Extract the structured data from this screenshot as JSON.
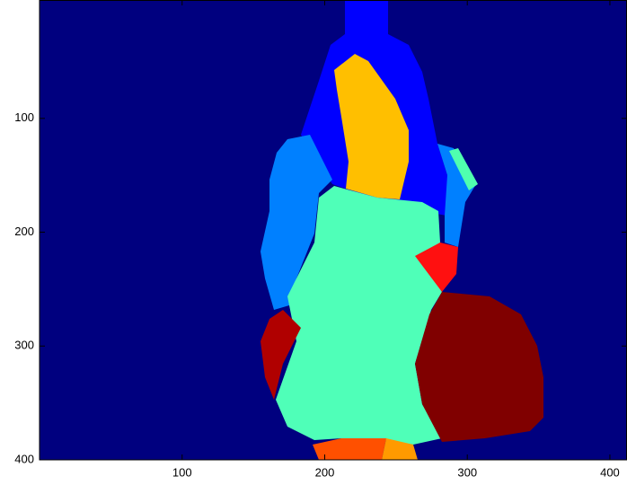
{
  "chart_data": {
    "type": "image",
    "xlim": [
      0,
      412
    ],
    "ylim": [
      -4,
      400
    ],
    "y_reversed": true,
    "xticks": [
      100,
      200,
      300,
      400
    ],
    "yticks": [
      100,
      200,
      300,
      400
    ]
  }
}
